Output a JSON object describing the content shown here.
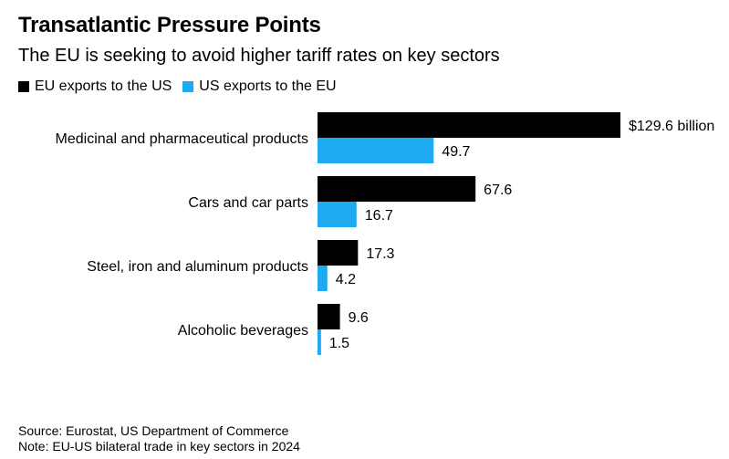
{
  "header": {
    "title": "Transatlantic Pressure Points",
    "subtitle": "The EU is seeking to avoid higher tariff rates on key sectors"
  },
  "footer": {
    "source": "Source: Eurostat, US Department of Commerce",
    "note": "Note: EU-US bilateral trade in key sectors in 2024"
  },
  "chart_data": {
    "type": "bar",
    "orientation": "horizontal",
    "categories": [
      "Medicinal and pharmaceutical products",
      "Cars and car parts",
      "Steel, iron and aluminum products",
      "Alcoholic beverages"
    ],
    "series": [
      {
        "name": "EU exports to the US",
        "color": "#000000",
        "values": [
          129.6,
          67.6,
          17.3,
          9.6
        ],
        "labels": [
          "$129.6 billion",
          "67.6",
          "17.3",
          "9.6"
        ]
      },
      {
        "name": "US exports to the EU",
        "color": "#1eaaf1",
        "values": [
          49.7,
          16.7,
          4.2,
          1.5
        ],
        "labels": [
          "49.7",
          "16.7",
          "4.2",
          "1.5"
        ]
      }
    ],
    "title": "Transatlantic Pressure Points",
    "xlim": [
      0,
      129.6
    ],
    "grid": false,
    "legend": "top-left"
  }
}
